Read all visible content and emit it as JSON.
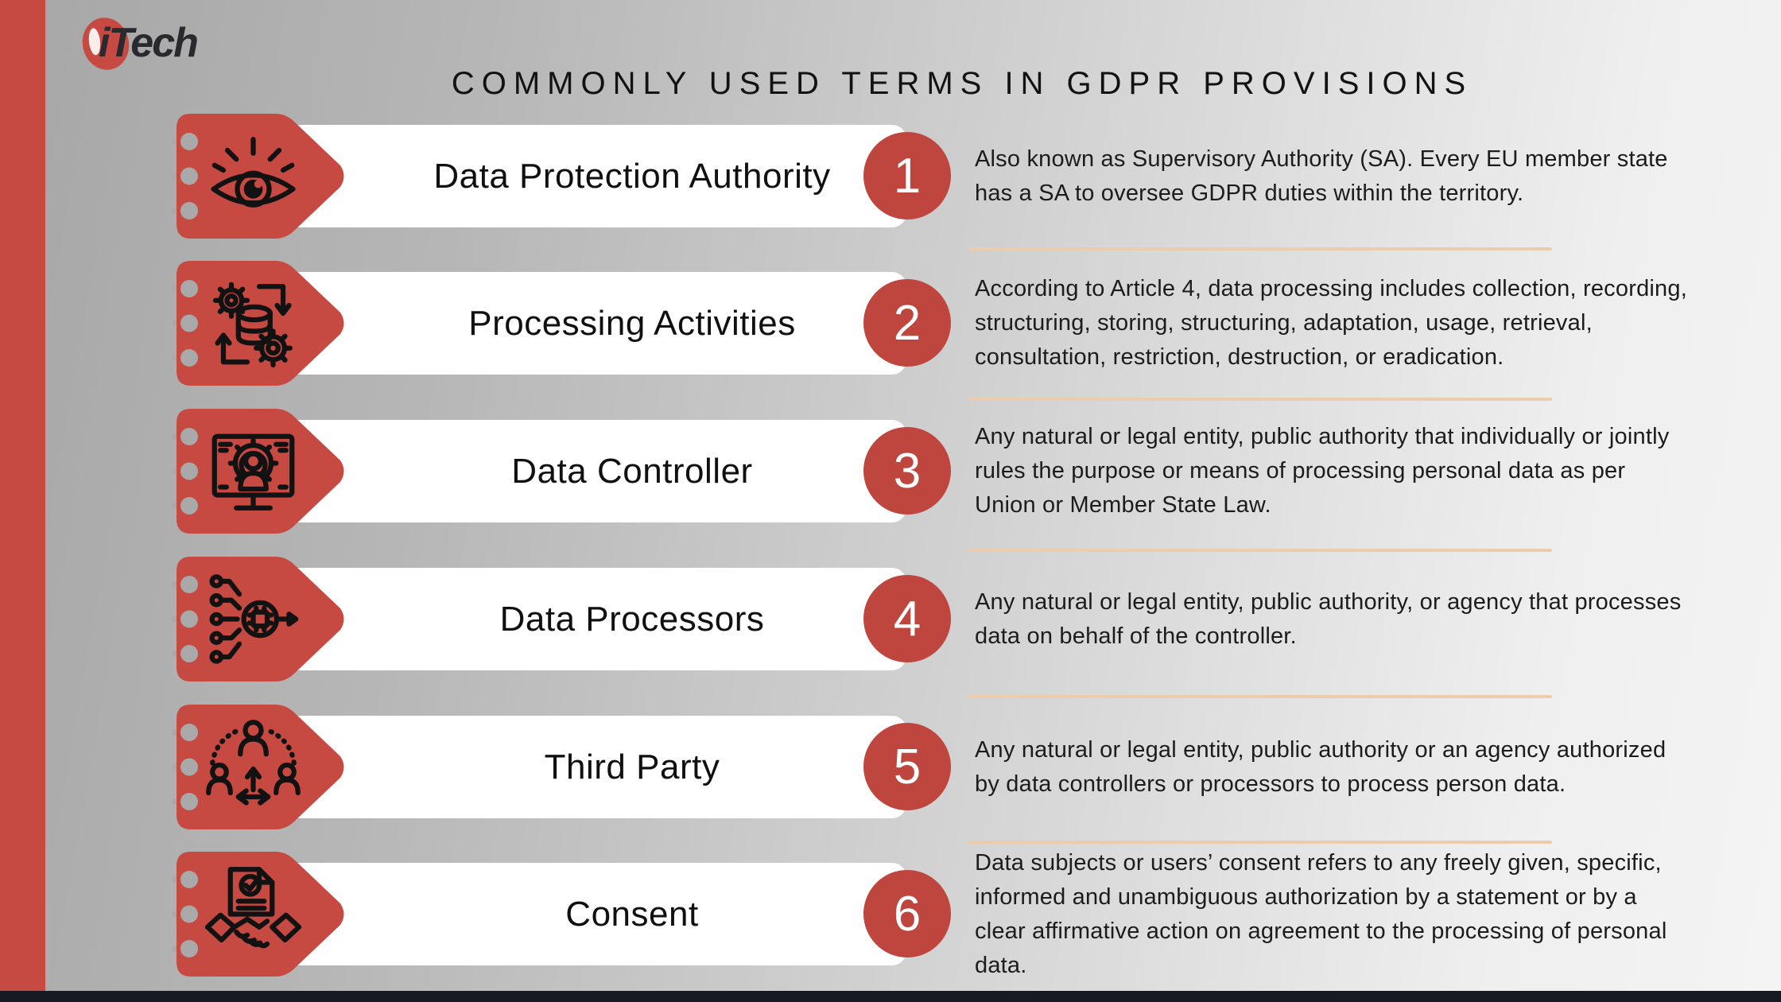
{
  "page": {
    "title": "COMMONLY USED TERMS IN GDPR PROVISIONS",
    "logo_text": "iTech"
  },
  "colors": {
    "accent_red": "#C74A42",
    "number_badge_red": "#BE463E",
    "divider_tan": "#ECCBAE",
    "footer_dark": "#171A22",
    "punch_gray": "#A9A9A9"
  },
  "terms": [
    {
      "number": "1",
      "label": "Data Protection Authority",
      "icon": "eye-icon",
      "description": "Also known as Supervisory Authority (SA). Every EU member state has a SA to oversee GDPR duties within the territory."
    },
    {
      "number": "2",
      "label": "Processing Activities",
      "icon": "processing-gears-icon",
      "description": "According to Article 4, data processing includes collection, recording, structuring, storing, structuring, adaptation, usage, retrieval, consultation, restriction, destruction, or eradication."
    },
    {
      "number": "3",
      "label": "Data Controller",
      "icon": "monitor-user-gear-icon",
      "description": "Any natural or legal entity, public authority that individually or jointly rules the purpose or means of processing personal data as per Union or Member State Law."
    },
    {
      "number": "4",
      "label": "Data Processors",
      "icon": "data-flow-cpu-icon",
      "description": "Any natural or legal entity, public authority, or agency that processes data on behalf of the controller."
    },
    {
      "number": "5",
      "label": "Third Party",
      "icon": "third-party-people-icon",
      "description": "Any natural or legal entity, public authority or an agency authorized by data controllers or processors to process person data."
    },
    {
      "number": "6",
      "label": "Consent",
      "icon": "consent-handshake-icon",
      "description": "Data subjects or users’ consent refers to any freely given, specific, informed and unambiguous authorization by a statement or by a clear affirmative action on agreement to the processing of personal data."
    }
  ]
}
